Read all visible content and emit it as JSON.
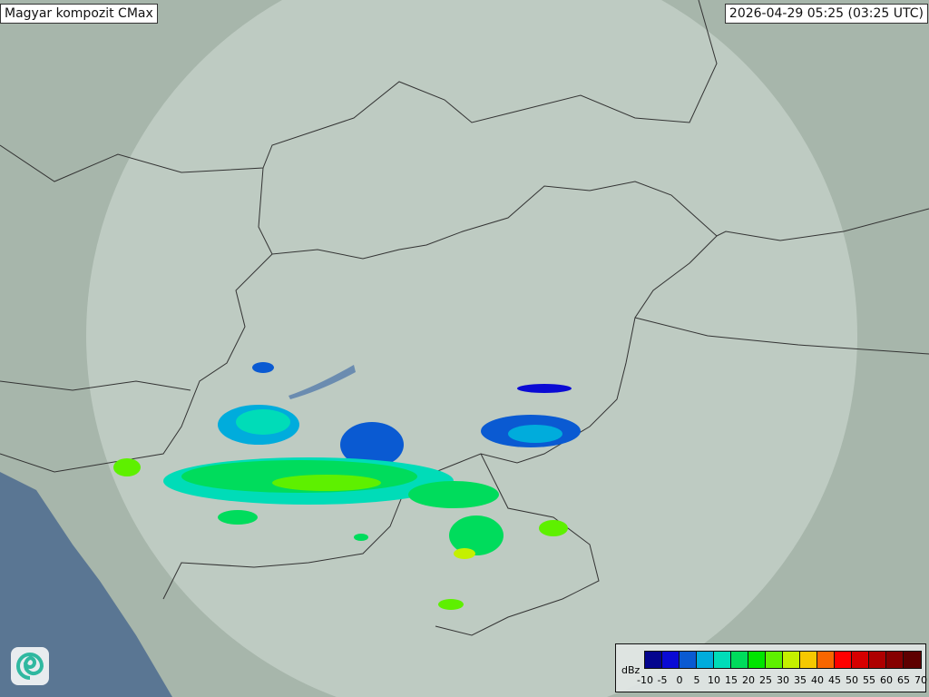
{
  "title": "Magyar kompozit  CMax",
  "timestamp": "2026-04-29 05:25 (03:25 UTC)",
  "legend": {
    "unit": "dBz",
    "ticks": [
      "-10",
      "-5",
      "0",
      "5",
      "10",
      "15",
      "20",
      "25",
      "30",
      "35",
      "40",
      "45",
      "50",
      "55",
      "60",
      "65",
      "70"
    ],
    "colors": [
      "#05058e",
      "#0a0ad4",
      "#0a5ad2",
      "#00acdc",
      "#00dcb8",
      "#00dc5c",
      "#00e400",
      "#5ef000",
      "#c4f000",
      "#f6c800",
      "#f86600",
      "#ff0000",
      "#d60000",
      "#ae0000",
      "#860000",
      "#5e0000"
    ]
  },
  "logo": "met-service-swirl-logo",
  "colors": {
    "map_land": "#a7b6ab",
    "radar_coverage": "#c6d2cb",
    "sea": "#5a7693",
    "borders": "#333333"
  }
}
